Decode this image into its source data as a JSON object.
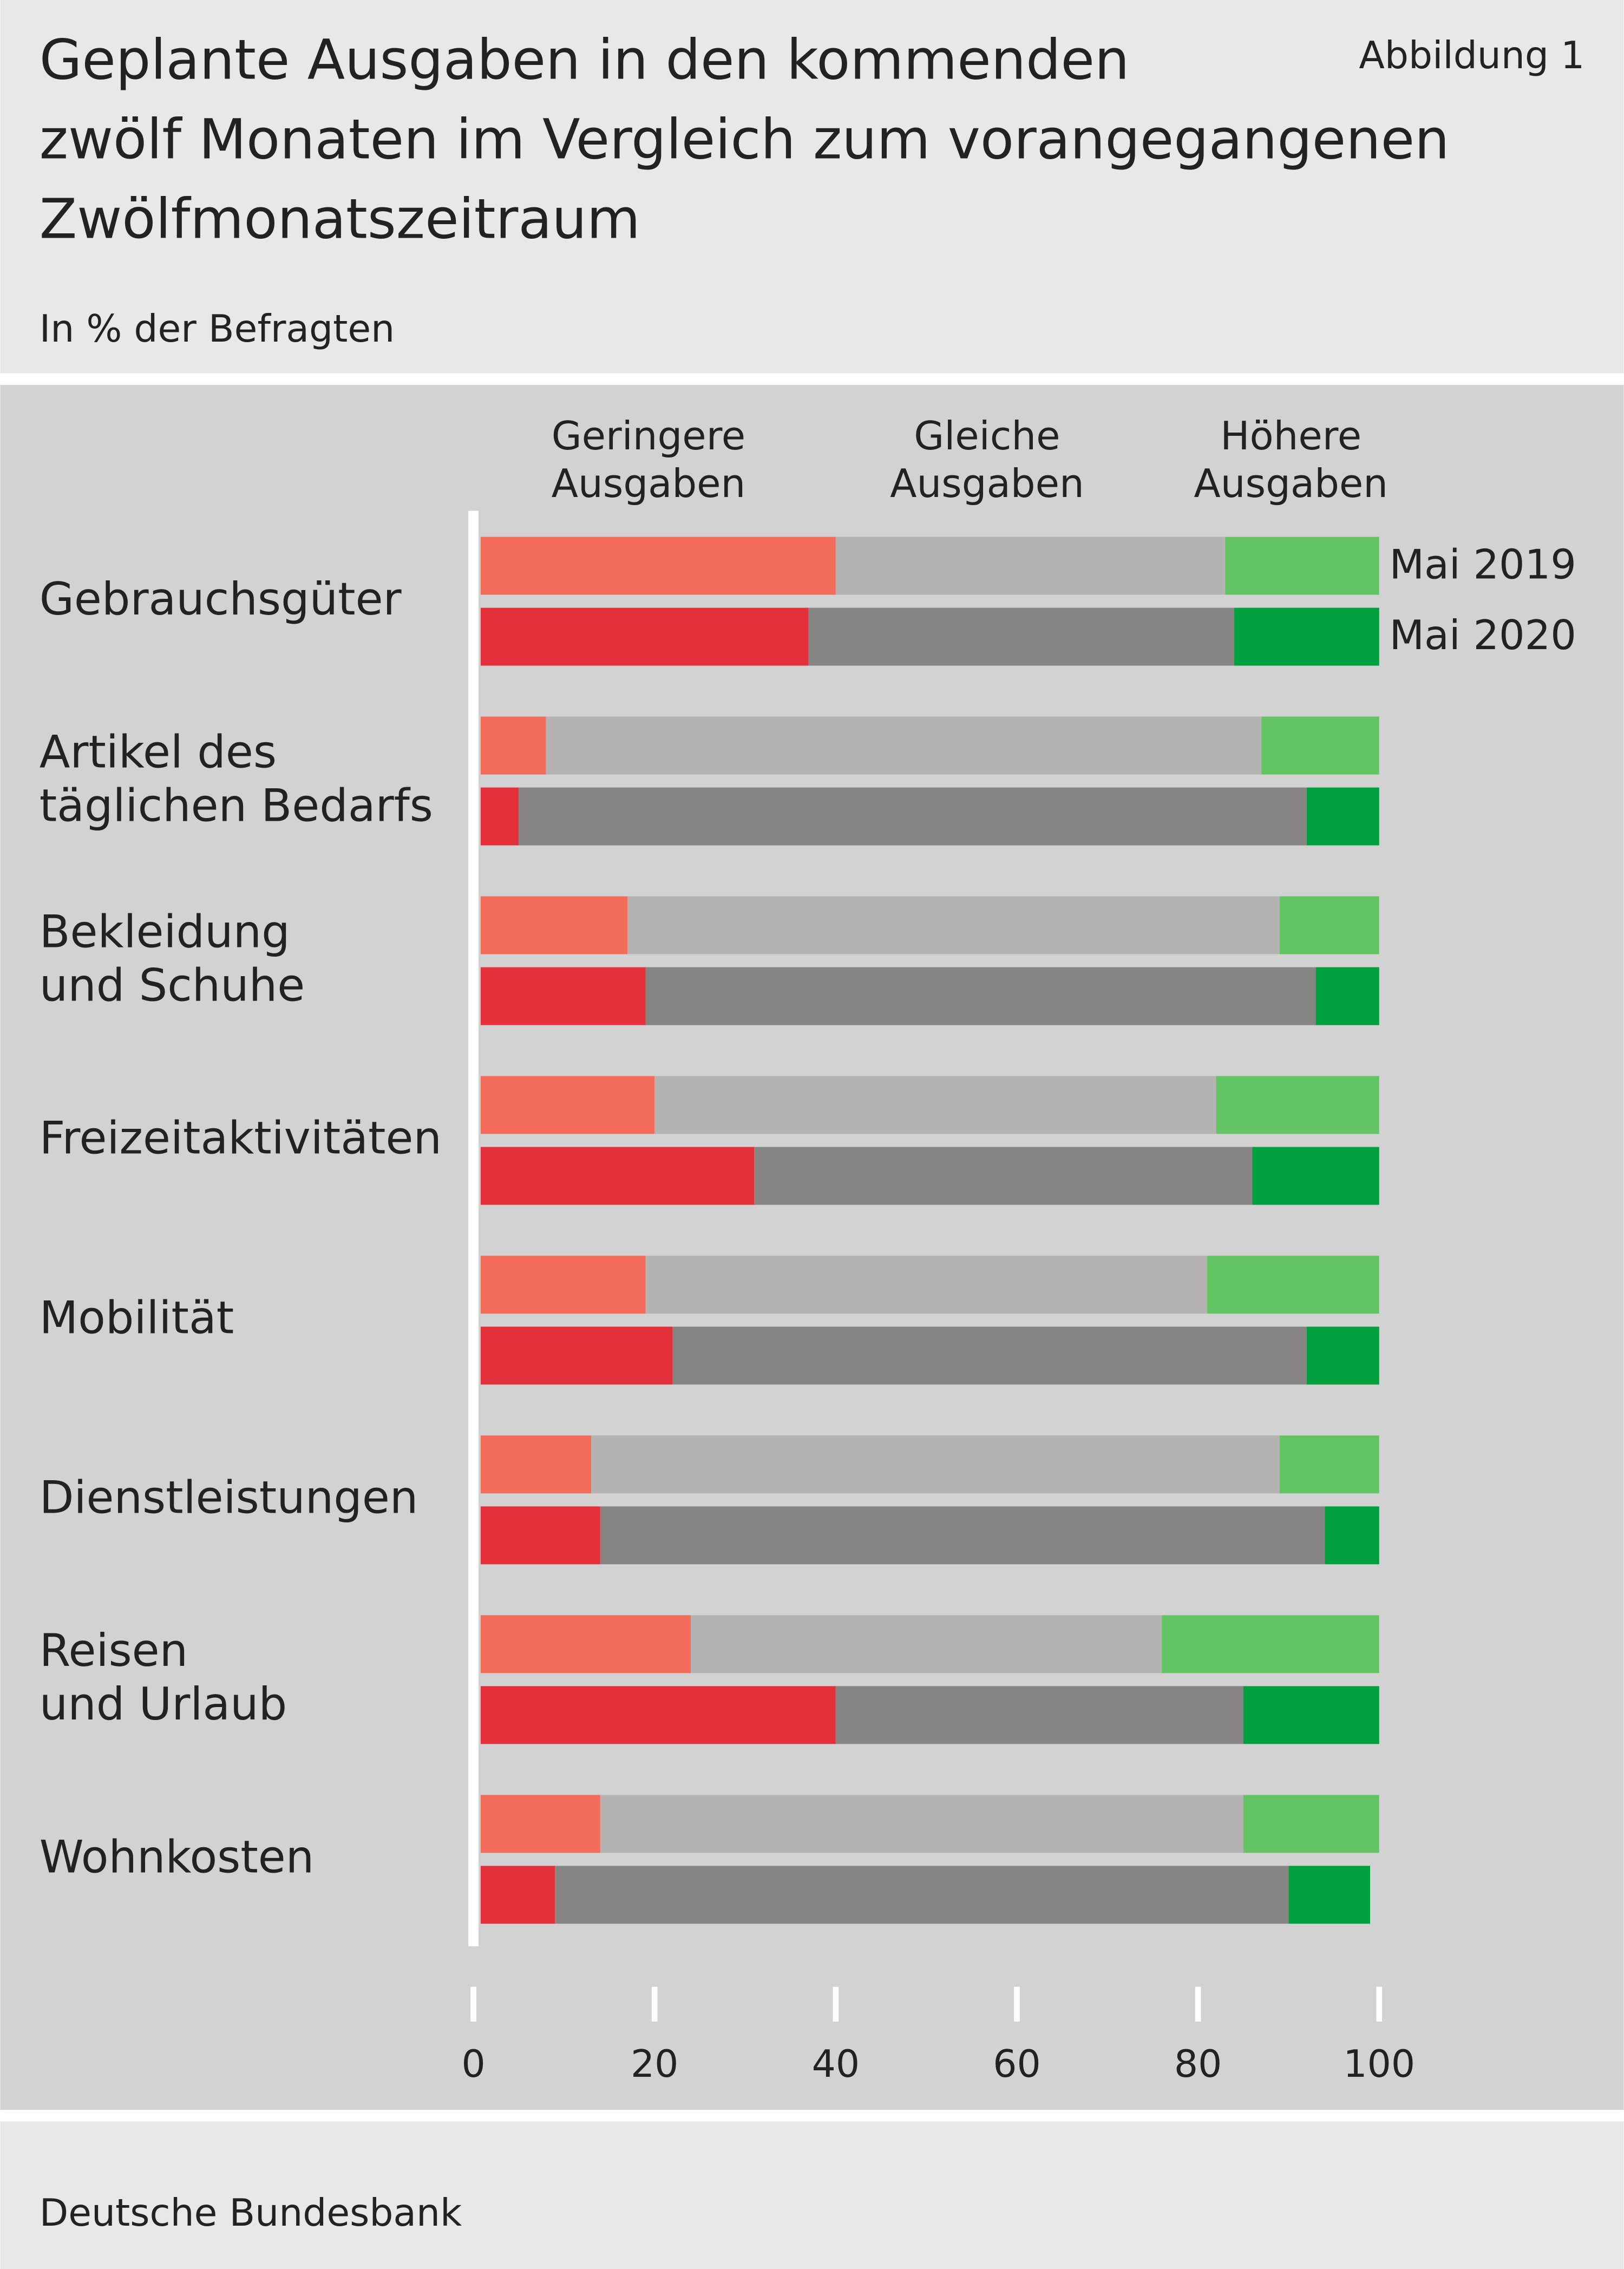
{
  "chart_data": {
    "type": "grouped-stacked-bar",
    "title": "Geplante Ausgaben in den kommenden\nzwölf Monaten im Vergleich zum vorangegangenen\nZwölfmonatszeitraum",
    "figure_label": "Abbildung 1",
    "subtitle": "In % der Befragten",
    "source": "Deutsche Bundesbank",
    "categories": [
      "Gebrauchsgüter",
      "Artikel des\ntäglichen Bedarfs",
      "Bekleidung\nund Schuhe",
      "Freizeitaktivitäten",
      "Mobilität",
      "Dienstleistungen",
      "Reisen\nund Urlaub",
      "Wohnkosten"
    ],
    "groups": [
      {
        "name": "Mai 2019",
        "series": [
          {
            "name": "Geringere\nAusgaben",
            "color": "#f26b5b",
            "values": [
              40,
              8,
              17,
              20,
              19,
              13,
              24,
              14
            ]
          },
          {
            "name": "Gleiche\nAusgaben",
            "color": "#b4b3b1",
            "values": [
              43,
              79,
              72,
              62,
              62,
              76,
              52,
              71
            ]
          },
          {
            "name": "Höhere\nAusgaben",
            "color": "#62c462",
            "values": [
              17,
              13,
              11,
              18,
              19,
              11,
              24,
              15
            ]
          }
        ]
      },
      {
        "name": "Mai 2020",
        "series": [
          {
            "name": "Geringere Ausgaben",
            "color": "#e3303a",
            "values": [
              37,
              5,
              19,
              31,
              22,
              14,
              40,
              9
            ]
          },
          {
            "name": "Gleiche Ausgaben",
            "color": "#868584",
            "values": [
              47,
              87,
              74,
              55,
              70,
              80,
              45,
              81
            ]
          },
          {
            "name": "Höhere Ausgaben",
            "color": "#00a03e",
            "values": [
              16,
              8,
              7,
              14,
              8,
              6,
              15,
              9
            ]
          }
        ]
      }
    ],
    "xlim": [
      0,
      100
    ],
    "xticks": [
      0,
      20,
      40,
      60,
      80,
      100
    ]
  }
}
